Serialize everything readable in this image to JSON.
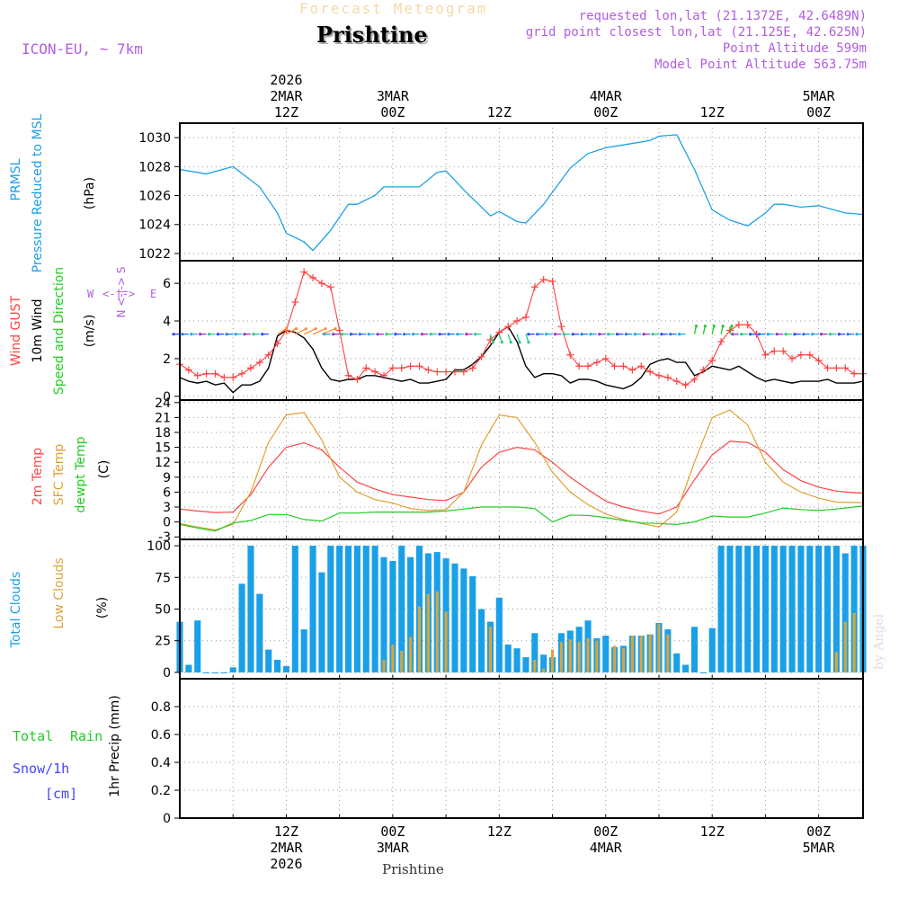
{
  "header": {
    "ghost_title": "Forecast Meteogram",
    "location": "Prishtine",
    "model": "ICON-EU, ~ 7km",
    "requested": "requested lon,lat (21.1372E, 42.6489N)",
    "gridpoint": "grid point closest lon,lat (21.125E, 42.625N)",
    "point_alt": "Point Altitude 599m",
    "model_alt": "Model Point Altitude 563.75m",
    "watermark": "by Angel",
    "footer": "Prishtine"
  },
  "time_axis": {
    "top_year": "2026",
    "ticks": [
      {
        "t": 12,
        "l1": "12Z",
        "l2": "2MAR",
        "l3": "2026"
      },
      {
        "t": 24,
        "l1": "00Z",
        "l2": "3MAR",
        "l3": ""
      },
      {
        "t": 36,
        "l1": "12Z",
        "l2": "",
        "l3": ""
      },
      {
        "t": 48,
        "l1": "00Z",
        "l2": "4MAR",
        "l3": ""
      },
      {
        "t": 60,
        "l1": "12Z",
        "l2": "",
        "l3": ""
      },
      {
        "t": 72,
        "l1": "00Z",
        "l2": "5MAR",
        "l3": ""
      }
    ],
    "top_ticks": [
      {
        "t": 12,
        "l1": "12Z",
        "l2": "2MAR",
        "l3": "2026"
      },
      {
        "t": 24,
        "l1": "00Z",
        "l2": "3MAR",
        "l3": ""
      },
      {
        "t": 36,
        "l1": "12Z",
        "l2": "",
        "l3": ""
      },
      {
        "t": 48,
        "l1": "00Z",
        "l2": "4MAR",
        "l3": ""
      },
      {
        "t": 60,
        "l1": "12Z",
        "l2": "",
        "l3": ""
      },
      {
        "t": 72,
        "l1": "00Z",
        "l2": "5MAR",
        "l3": ""
      }
    ]
  },
  "colors": {
    "pressure": "#1ba0e8",
    "gust": "#ff4040",
    "wind": "#000000",
    "direction": "#22cc22",
    "temp2m": "#ff4444",
    "sfc": "#e0a030",
    "dewpt": "#22cc22",
    "total_clouds": "#1aa0e8",
    "low_clouds": "#d9a53a",
    "rain": "#22cc22",
    "snow": "#4444ff",
    "compass": "#b25de0"
  },
  "chart_data": [
    {
      "type": "line",
      "name": "pressure",
      "labels": [
        "PRMSL",
        "Pressure Reduced to MSL",
        "(hPa)"
      ],
      "ylim": [
        1021.5,
        1031
      ],
      "yticks": [
        1022,
        1024,
        1026,
        1028,
        1030
      ],
      "x": [
        0,
        3,
        6,
        9,
        11,
        12,
        14,
        15,
        17,
        19,
        20,
        22,
        23,
        25,
        27,
        29,
        30,
        32,
        35,
        36,
        38,
        39,
        41,
        44,
        46,
        48,
        50,
        53,
        54,
        56,
        58,
        60,
        62,
        64,
        66,
        67,
        68,
        70,
        72,
        75,
        77
      ],
      "series": [
        {
          "name": "PRMSL",
          "values": [
            1027.8,
            1027.5,
            1028.0,
            1026.6,
            1024.8,
            1023.4,
            1022.8,
            1022.2,
            1023.6,
            1025.4,
            1025.4,
            1026.0,
            1026.6,
            1026.6,
            1026.6,
            1027.6,
            1027.7,
            1026.4,
            1024.6,
            1024.9,
            1024.2,
            1024.1,
            1025.4,
            1027.9,
            1028.9,
            1029.3,
            1029.5,
            1029.8,
            1030.1,
            1030.2,
            1027.8,
            1025.0,
            1024.3,
            1023.9,
            1024.8,
            1025.4,
            1025.4,
            1025.2,
            1025.3,
            1024.8,
            1024.7
          ]
        }
      ]
    },
    {
      "type": "line",
      "name": "wind",
      "labels": [
        "Wind GUST",
        "10m Wind",
        "Speed and Direction",
        "(m/s)"
      ],
      "compass": [
        "W",
        "<-|->",
        "E",
        "N",
        "<-|->",
        "S"
      ],
      "ylim": [
        -0.2,
        7.2
      ],
      "yticks": [
        0,
        2,
        4,
        6
      ],
      "x": [
        0,
        1,
        2,
        3,
        4,
        5,
        6,
        7,
        8,
        9,
        10,
        11,
        12,
        13,
        14,
        15,
        16,
        17,
        18,
        19,
        20,
        21,
        22,
        23,
        24,
        25,
        26,
        27,
        28,
        29,
        30,
        31,
        32,
        33,
        34,
        35,
        36,
        37,
        38,
        39,
        40,
        41,
        42,
        43,
        44,
        45,
        46,
        47,
        48,
        49,
        50,
        51,
        52,
        53,
        54,
        55,
        56,
        57,
        58,
        59,
        60,
        61,
        62,
        63,
        64,
        65,
        66,
        67,
        68,
        69,
        70,
        71,
        72,
        73,
        74,
        75,
        76,
        77
      ],
      "series": [
        {
          "name": "Wind GUST",
          "values": [
            1.7,
            1.4,
            1.1,
            1.2,
            1.2,
            1.0,
            1.0,
            1.2,
            1.5,
            1.8,
            2.2,
            2.8,
            3.5,
            5.0,
            6.6,
            6.3,
            6.0,
            5.8,
            3.5,
            1.1,
            0.9,
            1.5,
            1.3,
            1.1,
            1.5,
            1.5,
            1.6,
            1.6,
            1.4,
            1.3,
            1.3,
            1.3,
            1.3,
            1.5,
            2.1,
            3.0,
            3.4,
            3.7,
            4.0,
            4.2,
            5.8,
            6.2,
            6.1,
            3.7,
            2.2,
            1.6,
            1.6,
            1.8,
            2.0,
            1.6,
            1.6,
            1.4,
            1.6,
            1.3,
            1.1,
            1.0,
            0.8,
            0.6,
            0.9,
            1.4,
            1.9,
            2.9,
            3.5,
            3.8,
            3.8,
            3.3,
            2.2,
            2.4,
            2.4,
            2.0,
            2.2,
            2.2,
            1.9,
            1.5,
            1.5,
            1.5,
            1.2,
            1.2
          ]
        },
        {
          "name": "10m Wind",
          "values": [
            1.0,
            0.8,
            0.7,
            0.8,
            0.6,
            0.7,
            0.2,
            0.6,
            0.6,
            0.8,
            1.5,
            3.2,
            3.5,
            3.4,
            3.1,
            2.5,
            1.5,
            0.9,
            0.8,
            0.9,
            0.9,
            1.1,
            1.1,
            1.0,
            0.9,
            0.8,
            0.9,
            0.7,
            0.7,
            0.8,
            0.9,
            1.4,
            1.4,
            1.7,
            2.1,
            2.7,
            3.4,
            3.7,
            2.9,
            1.6,
            1.0,
            1.2,
            1.2,
            1.1,
            0.7,
            0.9,
            0.9,
            0.8,
            0.6,
            0.5,
            0.4,
            0.6,
            1.0,
            1.7,
            1.9,
            2.0,
            1.8,
            1.8,
            1.1,
            1.3,
            1.6,
            1.5,
            1.4,
            1.6,
            1.3,
            1.0,
            0.8,
            0.9,
            0.8,
            0.7,
            0.8,
            0.8,
            0.8,
            0.9,
            0.7,
            0.7,
            0.7,
            0.8
          ]
        }
      ],
      "direction_arrows_y": 3.3
    },
    {
      "type": "line",
      "name": "temperature",
      "labels": [
        "2m Temp",
        "SFC Temp",
        "dewpt Temp",
        "(C)"
      ],
      "ylim": [
        -3.5,
        24.5
      ],
      "yticks": [
        -3,
        0,
        3,
        6,
        9,
        12,
        15,
        18,
        21,
        24
      ],
      "x": [
        0,
        2,
        4,
        6,
        8,
        10,
        12,
        14,
        16,
        18,
        20,
        22,
        24,
        26,
        28,
        30,
        32,
        34,
        36,
        38,
        40,
        42,
        44,
        46,
        48,
        50,
        52,
        54,
        56,
        58,
        60,
        62,
        64,
        66,
        68,
        70,
        72,
        74,
        76,
        77
      ],
      "series": [
        {
          "name": "2m Temp",
          "values": [
            2.6,
            2.2,
            1.9,
            2.0,
            5.5,
            11.0,
            15.0,
            15.9,
            14.5,
            11.0,
            8.0,
            6.6,
            5.5,
            5.0,
            4.5,
            4.3,
            6.0,
            11.0,
            14.0,
            15.0,
            14.5,
            12.0,
            9.0,
            6.5,
            4.2,
            3.0,
            2.2,
            1.6,
            3.0,
            8.5,
            13.5,
            16.2,
            16.0,
            14.0,
            10.5,
            8.3,
            7.0,
            6.2,
            5.9,
            5.8
          ]
        },
        {
          "name": "SFC Temp",
          "values": [
            -0.3,
            -1.0,
            -1.6,
            -0.5,
            6.0,
            16.0,
            21.5,
            22.0,
            16.5,
            9.0,
            6.0,
            4.5,
            3.8,
            2.7,
            2.3,
            2.5,
            6.0,
            15.5,
            21.5,
            21.0,
            16.0,
            10.0,
            6.0,
            3.5,
            1.6,
            0.5,
            -0.3,
            -1.0,
            2.0,
            12.0,
            21.0,
            22.5,
            19.5,
            12.0,
            8.0,
            6.0,
            4.8,
            4.0,
            3.9,
            3.9
          ]
        },
        {
          "name": "dewpt Temp",
          "values": [
            -0.5,
            -1.2,
            -1.8,
            -0.2,
            0.3,
            1.5,
            1.5,
            0.5,
            0.2,
            1.8,
            1.8,
            2.0,
            2.0,
            2.0,
            2.0,
            2.2,
            2.6,
            3.0,
            3.0,
            3.0,
            2.7,
            0.0,
            1.4,
            1.3,
            0.9,
            0.3,
            -0.2,
            -0.3,
            -0.5,
            0.0,
            1.2,
            1.0,
            1.0,
            1.8,
            2.8,
            2.5,
            2.3,
            2.6,
            3.0,
            3.2
          ]
        }
      ]
    },
    {
      "type": "bar",
      "name": "clouds",
      "labels": [
        "Total Clouds",
        "Low Clouds",
        "(%)"
      ],
      "ylim": [
        -5,
        105
      ],
      "yticks": [
        0,
        25,
        50,
        75,
        100
      ],
      "x": [
        0,
        1,
        2,
        3,
        4,
        5,
        6,
        7,
        8,
        9,
        10,
        11,
        12,
        13,
        14,
        15,
        16,
        17,
        18,
        19,
        20,
        21,
        22,
        23,
        24,
        25,
        26,
        27,
        28,
        29,
        30,
        31,
        32,
        33,
        34,
        35,
        36,
        37,
        38,
        39,
        40,
        41,
        42,
        43,
        44,
        45,
        46,
        47,
        48,
        49,
        50,
        51,
        52,
        53,
        54,
        55,
        56,
        57,
        58,
        59,
        60,
        61,
        62,
        63,
        64,
        65,
        66,
        67,
        68,
        69,
        70,
        71,
        72,
        73,
        74,
        75,
        76,
        77
      ],
      "series": [
        {
          "name": "Total Clouds",
          "values": [
            40,
            6,
            41,
            0,
            0,
            0,
            4,
            70,
            100,
            62,
            18,
            10,
            5,
            100,
            34,
            100,
            79,
            100,
            100,
            100,
            100,
            100,
            100,
            91,
            88,
            100,
            91,
            100,
            94,
            95,
            90,
            86,
            82,
            76,
            50,
            40,
            59,
            22,
            19,
            12,
            31,
            14,
            12,
            31,
            33,
            36,
            41,
            27,
            29,
            20,
            21,
            29,
            29,
            30,
            39,
            34,
            15,
            6,
            36,
            0,
            35,
            100,
            100,
            100,
            100,
            100,
            100,
            100,
            100,
            100,
            100,
            100,
            100,
            100,
            100,
            94,
            100,
            100
          ]
        },
        {
          "name": "Low Clouds",
          "values": [
            0,
            0,
            0,
            0,
            0,
            0,
            0,
            0,
            0,
            0,
            0,
            0,
            0,
            0,
            0,
            0,
            0,
            0,
            0,
            0,
            0,
            0,
            0,
            10,
            22,
            17,
            28,
            52,
            62,
            64,
            48,
            0,
            0,
            0,
            0,
            36,
            0,
            0,
            0,
            0,
            10,
            3,
            18,
            24,
            26,
            24,
            27,
            25,
            0,
            21,
            19,
            29,
            29,
            30,
            38,
            30,
            0,
            0,
            0,
            0,
            0,
            0,
            0,
            0,
            0,
            0,
            0,
            0,
            0,
            0,
            0,
            0,
            0,
            0,
            16,
            40,
            47,
            0
          ]
        }
      ]
    },
    {
      "type": "line",
      "name": "precip",
      "labels": [
        "Total",
        "Rain",
        "Snow/1h",
        "[cm]",
        "1hr Precip (mm)"
      ],
      "ylim": [
        0,
        1.0
      ],
      "yticks": [
        0,
        0.2,
        0.4,
        0.6,
        0.8
      ],
      "x": [
        0,
        77
      ],
      "series": [
        {
          "name": "1hr Precip",
          "values": [
            0,
            0
          ]
        }
      ]
    }
  ]
}
